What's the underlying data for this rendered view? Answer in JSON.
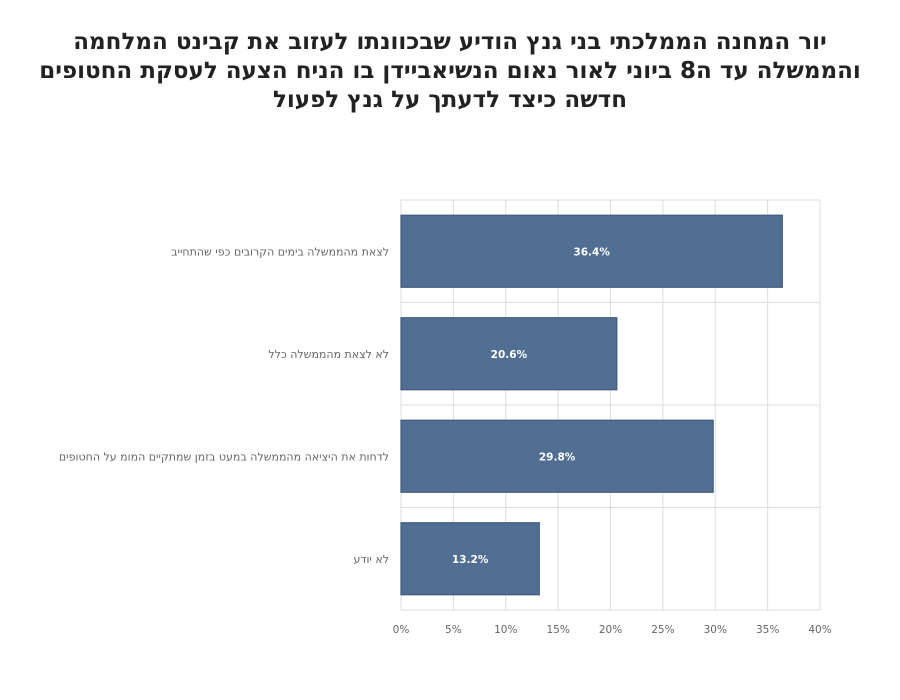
{
  "chart_data": {
    "type": "bar",
    "orientation": "horizontal",
    "title": "יור המחנה הממלכתי בני גנץ הודיע שבכוונתו לעזוב את קבינט המלחמה והממשלה עד ה8 ביוני לאור נאום הנשיאביידן בו הניח הצעה לעסקת החטופים חדשה כיצד לדעתך על גנץ לפעול",
    "categories": [
      "לצאת מהממשלה בימים הקרובים כפי שהתחייב",
      "לא לצאת מהממשלה כלל",
      "לדחות את היציאה מהממשלה במעט בזמן שמתקיים המומ על החטופים",
      "לא יודע"
    ],
    "values": [
      36.4,
      20.6,
      29.8,
      13.2
    ],
    "data_labels": [
      "36.4%",
      "20.6%",
      "29.8%",
      "13.2%"
    ],
    "xlim": [
      0,
      40
    ],
    "x_ticks": [
      0,
      5,
      10,
      15,
      20,
      25,
      30,
      35,
      40
    ],
    "x_tick_labels": [
      "0%",
      "5%",
      "10%",
      "15%",
      "20%",
      "25%",
      "30%",
      "35%",
      "40%"
    ],
    "grid": true,
    "legend": false,
    "bar_color": "#516f92",
    "bar_edge_color": "#3f5a7a",
    "grid_color": "#dddddd"
  }
}
